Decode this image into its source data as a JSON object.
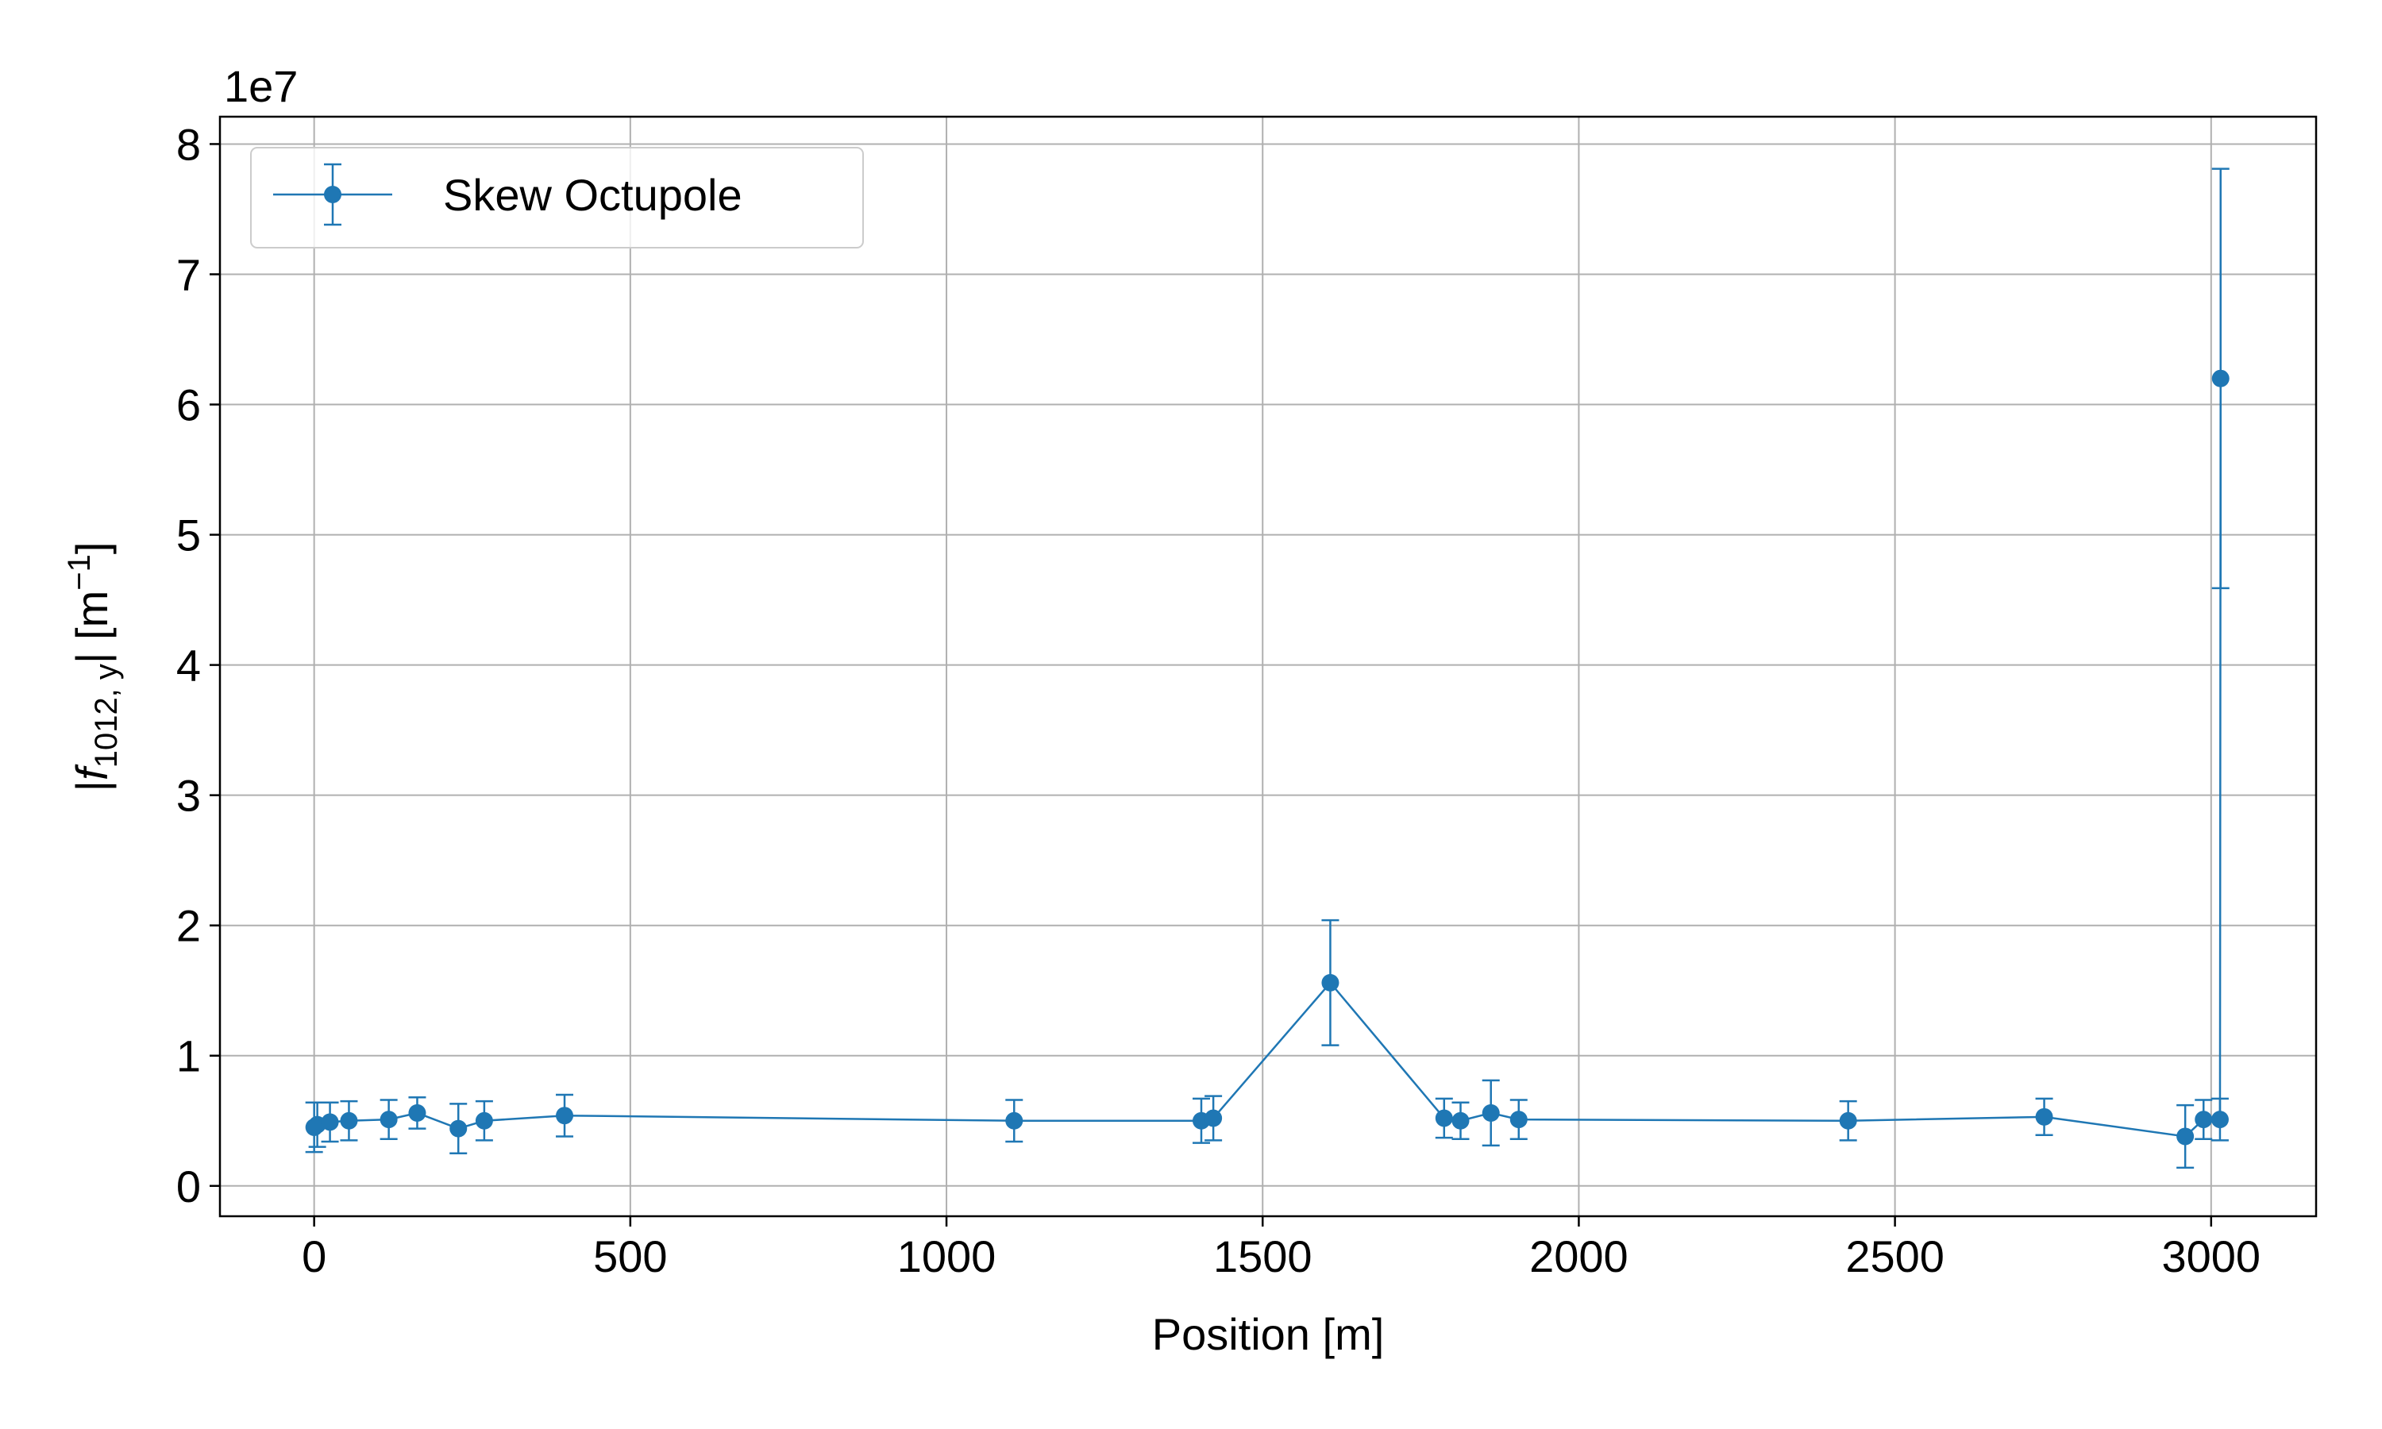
{
  "chart_data": {
    "type": "errorbar",
    "offset_label": "1e7",
    "xlabel": "Position [m]",
    "ylabel": [
      "|",
      "f",
      "1012, y",
      "| [m",
      "−1",
      "]"
    ],
    "xlim": [
      -149,
      3166
    ],
    "ylim": [
      -0.233,
      8.21
    ],
    "xticks": [
      0,
      500,
      1000,
      1500,
      2000,
      2500,
      3000
    ],
    "yticks": [
      0,
      1,
      2,
      3,
      4,
      5,
      6,
      7,
      8
    ],
    "grid": true,
    "legend": "upper left",
    "series": [
      {
        "name": "Skew Octupole",
        "color": "#1f77b4",
        "x": [
          0,
          5,
          25,
          55,
          118,
          163,
          228,
          269,
          396,
          1107,
          1403,
          1422,
          1607,
          1787,
          1813,
          1861,
          1905,
          2426,
          2736,
          2959,
          2988,
          3014,
          3015
        ],
        "values": [
          0.45,
          0.47,
          0.49,
          0.5,
          0.51,
          0.56,
          0.44,
          0.5,
          0.54,
          0.5,
          0.5,
          0.52,
          1.56,
          0.52,
          0.5,
          0.56,
          0.51,
          0.5,
          0.53,
          0.38,
          0.51,
          0.51,
          6.2
        ],
        "errors": [
          0.19,
          0.17,
          0.15,
          0.15,
          0.15,
          0.12,
          0.19,
          0.15,
          0.16,
          0.16,
          0.17,
          0.17,
          0.48,
          0.15,
          0.14,
          0.25,
          0.15,
          0.15,
          0.14,
          0.24,
          0.15,
          0.16,
          1.61
        ]
      }
    ]
  }
}
